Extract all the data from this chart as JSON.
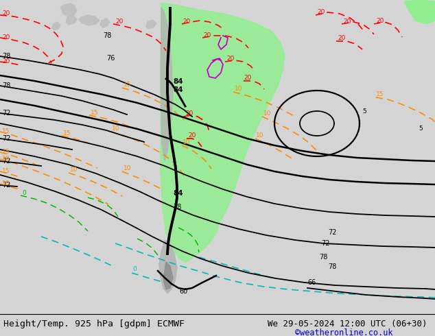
{
  "title_left": "Height/Temp. 925 hPa [gdpm] ECMWF",
  "title_right": "We 29-05-2024 12:00 UTC (06+30)",
  "credit": "©weatheronline.co.uk",
  "image_url": "https://www.weatheronline.co.uk/reanalysis/ECMWF_925_We_20240529_12_06.gif",
  "fig_width": 6.34,
  "fig_height": 4.9,
  "dpi": 100,
  "bg_color": "#d4d4d4",
  "title_color": "#000000",
  "credit_color": "#0000cc",
  "title_fontsize": 9.5,
  "credit_fontsize": 8.5,
  "map_area_color": "#d4d4d4",
  "ocean_color": "#d4d4d4",
  "land_green": "#90ee90",
  "land_gray": "#b4b4b4",
  "contour_black_lw": 1.3,
  "contour_temp_lw": 1.1,
  "red_color": "#ff0000",
  "orange_color": "#ff8c00",
  "magenta_color": "#cc00cc",
  "lime_color": "#00bb00",
  "cyan_color": "#00bbbb"
}
